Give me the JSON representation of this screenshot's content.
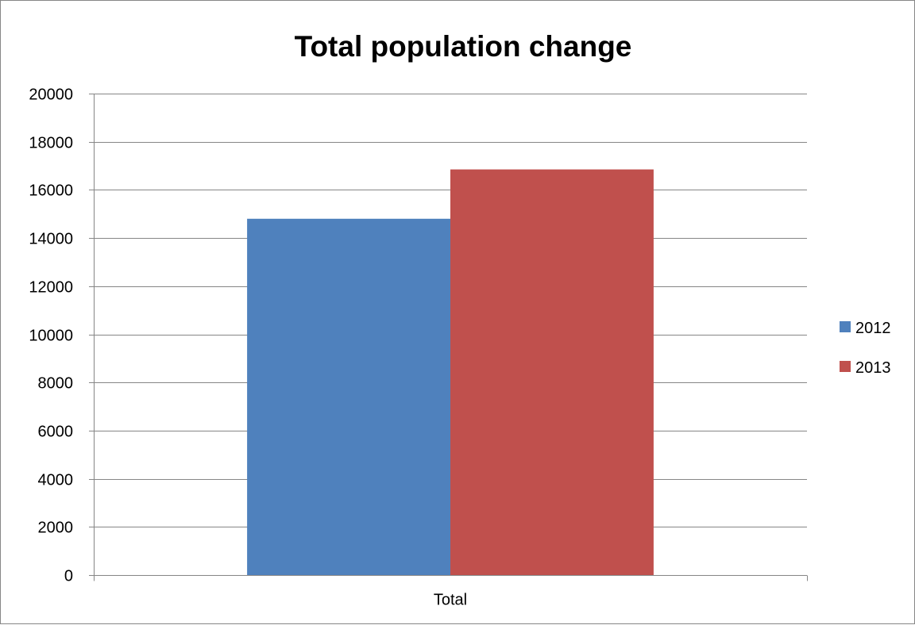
{
  "chart_data": {
    "type": "bar",
    "title": "Total population change",
    "xlabel": "",
    "ylabel": "",
    "categories": [
      "Total"
    ],
    "series": [
      {
        "name": "2012",
        "values": [
          14800
        ],
        "color": "#4F81BD"
      },
      {
        "name": "2013",
        "values": [
          16850
        ],
        "color": "#C0504D"
      }
    ],
    "ylim": [
      0,
      20000
    ],
    "yticks": [
      0,
      2000,
      4000,
      6000,
      8000,
      10000,
      12000,
      14000,
      16000,
      18000,
      20000
    ],
    "grid": true,
    "legend_position": "right"
  }
}
